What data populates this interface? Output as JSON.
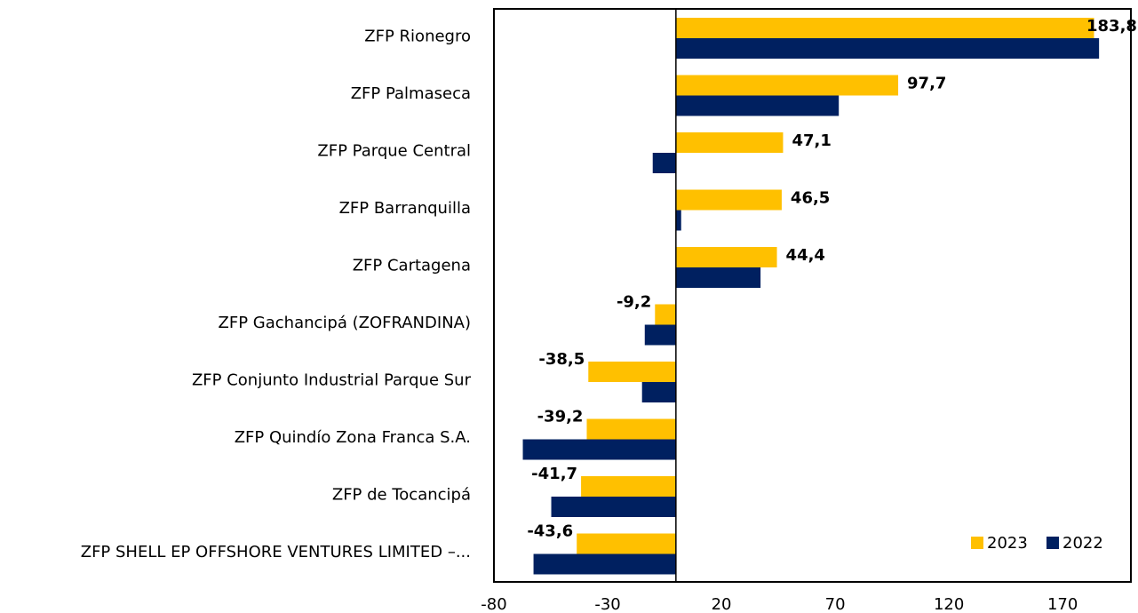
{
  "chart_data": {
    "type": "bar",
    "orientation": "horizontal",
    "categories": [
      "ZFP Rionegro",
      "ZFP Palmaseca",
      "ZFP Parque Central",
      "ZFP Barranquilla",
      "ZFP Cartagena",
      "ZFP Gachancipá (ZOFRANDINA)",
      "ZFP Conjunto Industrial Parque Sur",
      "ZFP Quindío Zona Franca S.A.",
      "ZFP de Tocancipá",
      "ZFP SHELL EP OFFSHORE VENTURES LIMITED –..."
    ],
    "series": [
      {
        "name": "2023",
        "color": "#FFC000",
        "values": [
          183.8,
          97.7,
          47.1,
          46.5,
          44.4,
          -9.2,
          -38.5,
          -39.2,
          -41.7,
          -43.6
        ],
        "value_labels": [
          "183,8",
          "97,7",
          "47,1",
          "46,5",
          "44,4",
          "-9,2",
          "-38,5",
          "-39,2",
          "-41,7",
          "-43,6"
        ]
      },
      {
        "name": "2022",
        "color": "#002060",
        "values": [
          186,
          71.6,
          -10.2,
          2.3,
          37.2,
          -13.7,
          -14.9,
          -67.3,
          -54.8,
          -62.6
        ]
      }
    ],
    "xlim": [
      -80,
      200
    ],
    "xticks": [
      -80,
      -30,
      20,
      70,
      120,
      170
    ],
    "legend": "lower right"
  }
}
